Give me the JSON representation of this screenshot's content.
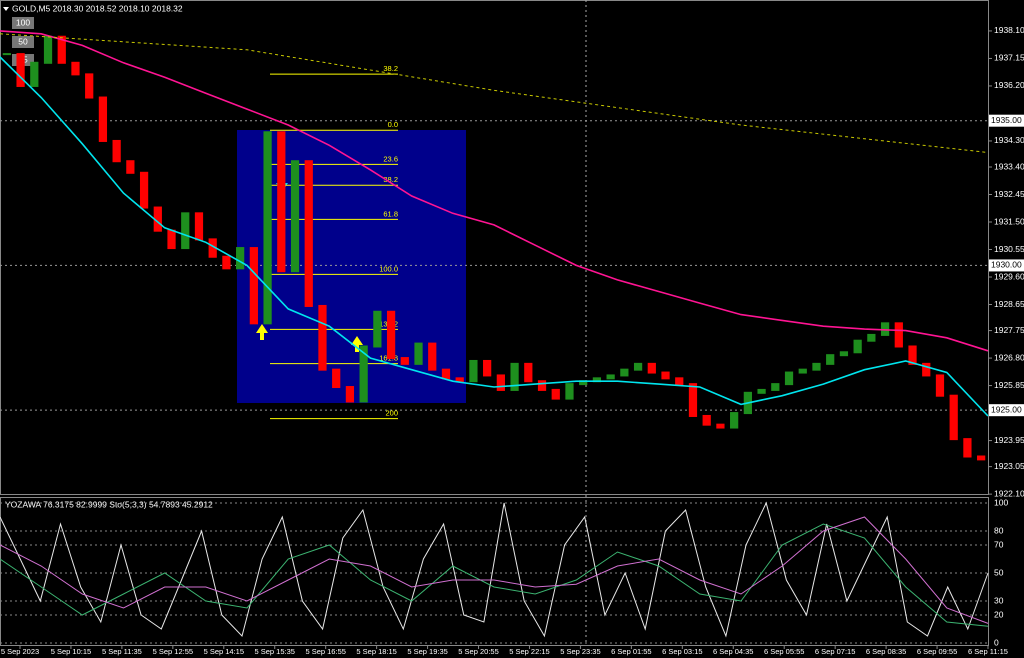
{
  "header": {
    "title": "GOLD,M5  2018.30 2018.52 2018.10 2018.32",
    "buttons": [
      "100",
      "50",
      "25"
    ]
  },
  "chart_data": [
    {
      "type": "candlestick",
      "up_color": "#1e8f1e",
      "down_color": "#ff0000",
      "values": [
        1937.3,
        1936.2,
        1937.0,
        1937.9,
        1937.0,
        1936.6,
        1935.8,
        1934.3,
        1933.6,
        1933.2,
        1932.0,
        1931.2,
        1930.6,
        1931.8,
        1930.9,
        1930.3,
        1929.9,
        1930.6,
        1928.0,
        1934.6,
        1929.8,
        1933.6,
        1928.6,
        1926.4,
        1925.8,
        1925.3,
        1927.2,
        1928.4,
        1926.8,
        1926.6,
        1927.3,
        1926.4,
        1926.1,
        1926.0,
        1926.7,
        1926.2,
        1925.7,
        1926.6,
        1926.0,
        1925.7,
        1925.4,
        1925.9,
        1926.0,
        1926.1,
        1926.2,
        1926.4,
        1926.6,
        1926.3,
        1926.1,
        1925.9,
        1924.8,
        1924.5,
        1924.4,
        1924.9,
        1925.6,
        1925.7,
        1925.9,
        1926.3,
        1926.4,
        1926.6,
        1926.9,
        1927.0,
        1927.4,
        1927.6,
        1928.0,
        1927.2,
        1926.6,
        1926.2,
        1925.5,
        1924.0,
        1923.4,
        1923.3
      ],
      "series": [
        {
          "color": "#00e5ee",
          "dash": false,
          "values": [
            1937.2,
            1935.8,
            1934.2,
            1932.5,
            1931.3,
            1930.8,
            1930.0,
            1928.5,
            1927.9,
            1926.8,
            1926.4,
            1926.0,
            1925.8,
            1925.9,
            1926.0,
            1926.0,
            1925.9,
            1925.8,
            1925.2,
            1925.5,
            1925.9,
            1926.4,
            1926.7,
            1926.3,
            1924.8
          ]
        },
        {
          "color": "#ff1493",
          "dash": false,
          "values": [
            1938.1,
            1938.0,
            1937.6,
            1937.0,
            1936.5,
            1935.95,
            1935.4,
            1934.85,
            1934.15,
            1933.3,
            1932.4,
            1931.8,
            1931.4,
            1930.7,
            1930.0,
            1929.5,
            1929.1,
            1928.7,
            1928.3,
            1928.1,
            1927.9,
            1927.8,
            1927.75,
            1927.5,
            1927.05
          ]
        },
        {
          "color": "#c8c800",
          "dash": true,
          "values": [
            1938.0,
            1937.45,
            1936.05,
            1934.85,
            1933.9
          ]
        }
      ],
      "ylim": [
        1922.07,
        1939.1
      ],
      "yticks": [
        {
          "value": 1938.1,
          "label": "1938.10"
        },
        {
          "value": 1937.15,
          "label": "1937.15"
        },
        {
          "value": 1936.2,
          "label": "1936.20"
        },
        {
          "value": 1934.3,
          "label": "1934.30"
        },
        {
          "value": 1933.4,
          "label": "1933.40"
        },
        {
          "value": 1932.45,
          "label": "1932.45"
        },
        {
          "value": 1931.5,
          "label": "1931.50"
        },
        {
          "value": 1930.55,
          "label": "1930.55"
        },
        {
          "value": 1929.6,
          "label": "1929.60"
        },
        {
          "value": 1928.65,
          "label": "1928.65"
        },
        {
          "value": 1927.75,
          "label": "1927.75"
        },
        {
          "value": 1926.8,
          "label": "1926.80"
        },
        {
          "value": 1925.85,
          "label": "1925.85"
        },
        {
          "value": 1923.95,
          "label": "1923.95"
        },
        {
          "value": 1923.05,
          "label": "1923.05"
        },
        {
          "value": 1922.1,
          "label": "1922.10"
        }
      ],
      "hlines": [
        {
          "value": 1935,
          "label": "1935.00"
        },
        {
          "value": 1930,
          "label": "1930.00"
        },
        {
          "value": 1925,
          "label": "1925.00"
        }
      ],
      "fib_levels": [
        {
          "value": 1936.61,
          "label": "38.2"
        },
        {
          "value": 1934.67,
          "label": "0.0"
        },
        {
          "value": 1933.49,
          "label": "23.6"
        },
        {
          "value": 1932.77,
          "label": "38.2"
        },
        {
          "value": 1931.59,
          "label": "61.8"
        },
        {
          "value": 1929.69,
          "label": "100.0"
        },
        {
          "value": 1927.79,
          "label": "138.2"
        },
        {
          "value": 1926.61,
          "label": "161.8"
        },
        {
          "value": 1924.71,
          "label": "200"
        }
      ],
      "time_labels": [
        "5 Sep 2023",
        "5 Sep 10:15",
        "5 Sep 11:35",
        "5 Sep 12:55",
        "5 Sep 14:15",
        "5 Sep 15:35",
        "5 Sep 16:55",
        "5 Sep 18:15",
        "5 Sep 19:35",
        "5 Sep 20:55",
        "5 Sep 22:15",
        "5 Sep 23:35",
        "6 Sep 01:55",
        "6 Sep 03:15",
        "6 Sep 04:35",
        "6 Sep 05:55",
        "6 Sep 07:15",
        "6 Sep 08:35",
        "6 Sep 09:55",
        "6 Sep 11:15"
      ]
    },
    {
      "type": "line",
      "title": "YOZAWA 76.3175 82.9999 Sto(5,3,3) 54.7893 45.2912",
      "grid": true,
      "ylim": [
        -1.4,
        103.6
      ],
      "yticks": [
        0,
        20,
        30,
        50,
        70,
        80,
        100
      ],
      "series": [
        {
          "color": "#e8e8e8",
          "values": [
            90,
            60,
            30,
            85,
            40,
            15,
            70,
            20,
            10,
            45,
            80,
            20,
            5,
            60,
            90,
            30,
            10,
            75,
            95,
            40,
            10,
            60,
            85,
            20,
            15,
            100,
            30,
            5,
            70,
            90,
            20,
            50,
            10,
            80,
            95,
            40,
            5,
            70,
            100,
            45,
            20,
            85,
            30,
            60,
            90,
            15,
            5,
            40,
            10,
            50
          ]
        },
        {
          "color": "#3cb371",
          "values": [
            60,
            40,
            20,
            35,
            50,
            30,
            25,
            60,
            70,
            45,
            30,
            55,
            40,
            35,
            45,
            65,
            55,
            35,
            30,
            70,
            85,
            75,
            40,
            15,
            12
          ]
        },
        {
          "color": "#d070d0",
          "values": [
            70,
            55,
            35,
            25,
            40,
            40,
            30,
            45,
            60,
            55,
            40,
            45,
            45,
            40,
            42,
            55,
            60,
            45,
            35,
            55,
            80,
            90,
            60,
            25,
            14
          ]
        }
      ]
    }
  ]
}
